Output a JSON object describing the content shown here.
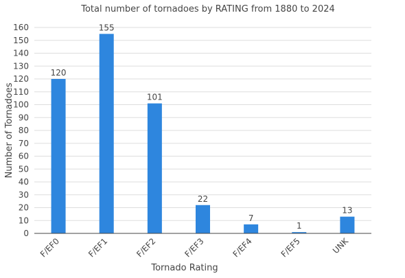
{
  "chart_data": {
    "type": "bar",
    "title": "Total number of tornadoes by RATING from 1880 to 2024",
    "xlabel": "Tornado Rating",
    "ylabel": "Number of Tornadoes",
    "categories": [
      "F/EF0",
      "F/EF1",
      "F/EF2",
      "F/EF3",
      "F/EF4",
      "F/EF5",
      "UNK"
    ],
    "values": [
      120,
      155,
      101,
      22,
      7,
      1,
      13
    ],
    "data_labels": [
      "120",
      "155",
      "101",
      "22",
      "7",
      "1",
      "13"
    ],
    "ylim": [
      0,
      160
    ],
    "yticks": [
      0,
      10,
      20,
      30,
      40,
      50,
      60,
      70,
      80,
      90,
      100,
      110,
      120,
      130,
      140,
      150,
      160
    ],
    "grid": true,
    "legend": "none",
    "colors": {
      "bar": "#2e86de",
      "grid": "#dddddd",
      "axis": "#444444",
      "text": "#444444"
    }
  }
}
